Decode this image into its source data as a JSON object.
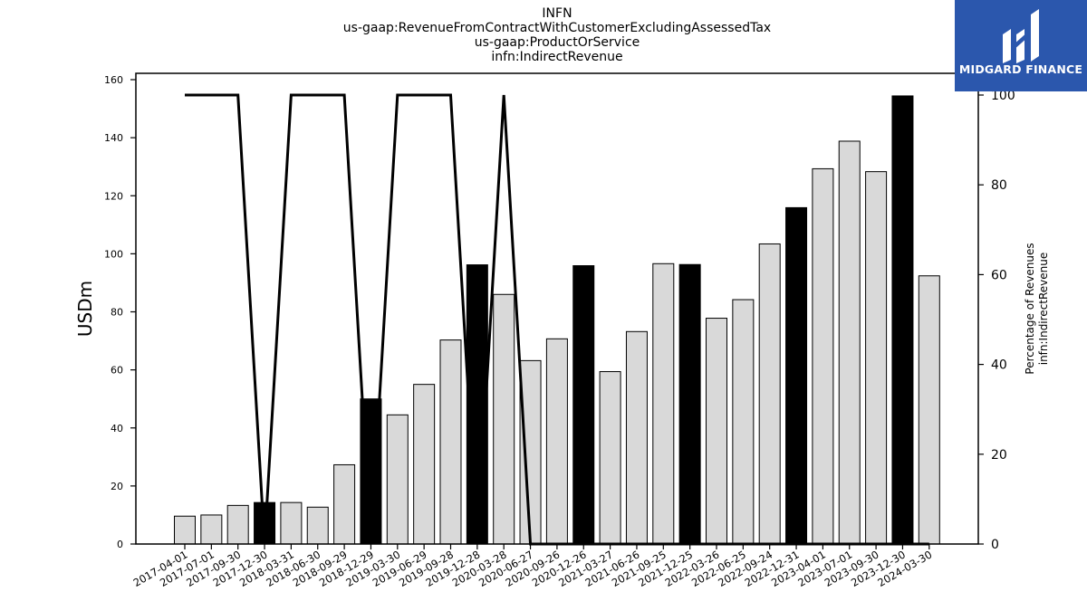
{
  "title_lines": [
    "INFN",
    "us-gaap:RevenueFromContractWithCustomerExcludingAssessedTax",
    "us-gaap:ProductOrService",
    "infn:IndirectRevenue"
  ],
  "logo": {
    "text": "MIDGARD FINANCE",
    "color": "#2b57ad"
  },
  "chart_data": {
    "type": "bar",
    "categories": [
      "2017-04-01",
      "2017-07-01",
      "2017-09-30",
      "2017-12-30",
      "2018-03-31",
      "2018-06-30",
      "2018-09-29",
      "2018-12-29",
      "2019-03-30",
      "2019-06-29",
      "2019-09-28",
      "2019-12-28",
      "2020-03-28",
      "2020-06-27",
      "2020-09-26",
      "2020-12-26",
      "2021-03-27",
      "2021-06-26",
      "2021-09-25",
      "2021-12-25",
      "2022-03-26",
      "2022-06-25",
      "2022-09-24",
      "2022-12-31",
      "2023-04-01",
      "2023-07-01",
      "2023-09-30",
      "2023-12-30",
      "2024-03-30"
    ],
    "series": [
      {
        "axis": "left",
        "type": "bar",
        "values": [
          9.6,
          10.0,
          13.3,
          14.3,
          14.3,
          12.7,
          27.3,
          50.0,
          44.5,
          55.0,
          70.3,
          96.2,
          86.0,
          63.2,
          70.7,
          95.9,
          59.4,
          73.2,
          96.6,
          96.3,
          77.8,
          84.2,
          103.4,
          115.9,
          129.3,
          138.8,
          128.3,
          154.4,
          92.4
        ],
        "highlight": [
          false,
          false,
          false,
          true,
          false,
          false,
          false,
          true,
          false,
          false,
          false,
          true,
          false,
          false,
          false,
          true,
          false,
          false,
          false,
          true,
          false,
          false,
          false,
          true,
          false,
          false,
          false,
          true,
          false
        ]
      },
      {
        "axis": "right",
        "type": "line",
        "values": [
          100,
          100,
          100,
          0,
          100,
          100,
          100,
          0,
          100,
          100,
          100,
          0,
          100,
          0,
          0,
          0,
          0,
          0,
          0,
          0,
          0,
          0,
          0,
          0,
          0,
          0,
          0,
          0,
          0
        ]
      }
    ],
    "ylabel": "USDm",
    "y2label_lines": [
      "Percentage of Revenues",
      "infn:IndirectRevenue"
    ],
    "ylim": [
      0,
      160
    ],
    "y2lim": [
      0,
      100
    ],
    "yticks": [
      0,
      20,
      40,
      60,
      80,
      100,
      120,
      140,
      160
    ],
    "y2ticks": [
      0,
      20,
      40,
      60,
      80,
      100
    ],
    "colors": {
      "bar": "#d9d9d9",
      "bar_highlight": "#000000",
      "line": "#000000"
    }
  }
}
